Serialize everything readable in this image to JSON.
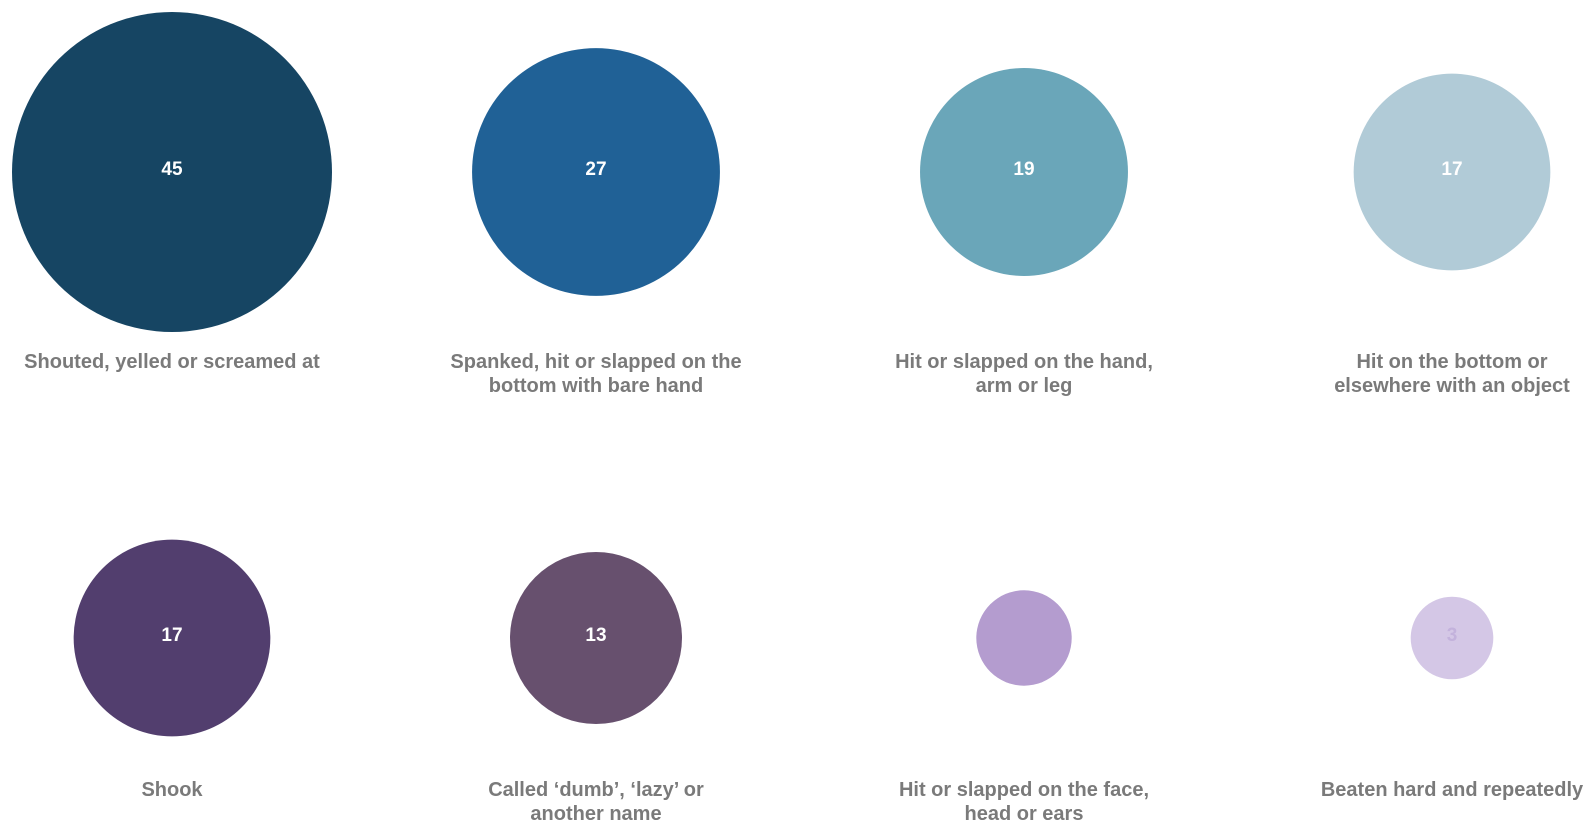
{
  "chart_data": {
    "type": "bubble",
    "title": "",
    "items": [
      {
        "label_lines": [
          "Shouted, yelled or screamed at"
        ],
        "value": 45,
        "color": "#164563",
        "value_color": "#ffffff"
      },
      {
        "label_lines": [
          "Spanked, hit or slapped on the",
          "bottom with bare hand"
        ],
        "value": 27,
        "color": "#206196",
        "value_color": "#ffffff"
      },
      {
        "label_lines": [
          "Hit or slapped on the hand,",
          "arm or leg"
        ],
        "value": 19,
        "color": "#6aa6b9",
        "value_color": "#ffffff"
      },
      {
        "label_lines": [
          "Hit on the bottom or",
          "elsewhere with an object"
        ],
        "value": 17,
        "color": "#b1cbd7",
        "value_color": "#ffffff"
      },
      {
        "label_lines": [
          "Shook"
        ],
        "value": 17,
        "color": "#523e6e",
        "value_color": "#ffffff"
      },
      {
        "label_lines": [
          "Called ‘dumb’, ‘lazy’ or",
          "another name"
        ],
        "value": 13,
        "color": "#67506e",
        "value_color": "#ffffff"
      },
      {
        "label_lines": [
          "Hit or slapped on the face,",
          "head or ears"
        ],
        "value": 4,
        "color": "#b49ccf",
        "value_color": "#b49ccf"
      },
      {
        "label_lines": [
          "Beaten hard and repeatedly"
        ],
        "value": 3,
        "color": "#d4c7e6",
        "value_color": "#c3b2dc"
      }
    ]
  }
}
